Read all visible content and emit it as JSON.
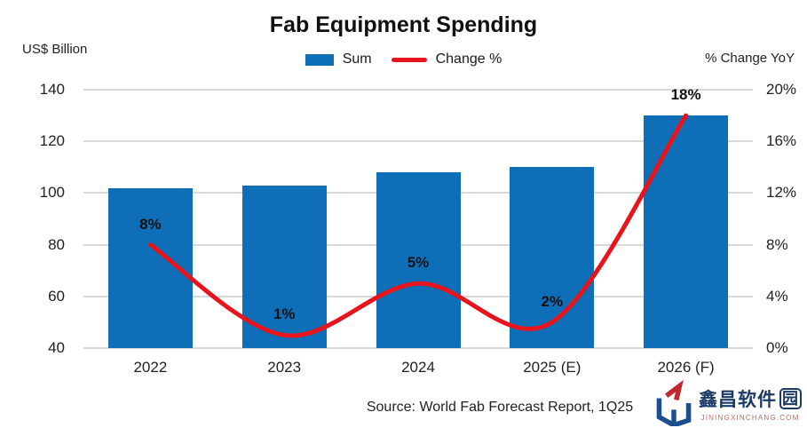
{
  "title": "Fab Equipment Spending",
  "left_axis_title": "US$ Billion",
  "right_axis_title": "% Change YoY",
  "legend": [
    {
      "label": "Sum",
      "type": "bar"
    },
    {
      "label": "Change %",
      "type": "line"
    }
  ],
  "source": "Source: World Fab Forecast Report, 1Q25",
  "watermark": {
    "name": "鑫昌软件",
    "name_boxed": "园",
    "domain": "JININGXINCHANG.COM",
    "text_color": "#1b3a66",
    "domain_color": "#bb6e65",
    "logo_red": "#c0282f",
    "logo_blue": "#1d4e8f"
  },
  "colors": {
    "bar": "#0e6fb8",
    "line": "#e8141b",
    "grid": "#d9d9d9",
    "text": "#1a1a1a"
  },
  "chart_data": {
    "type": "bar+line combo",
    "categories": [
      "2022",
      "2023",
      "2024",
      "2025 (E)",
      "2026 (F)"
    ],
    "series": [
      {
        "name": "Sum",
        "type": "bar",
        "axis": "left",
        "values": [
          102,
          103,
          108,
          110,
          130
        ]
      },
      {
        "name": "Change %",
        "type": "line",
        "axis": "right",
        "values": [
          8,
          1,
          5,
          2,
          18
        ],
        "point_labels": [
          "8%",
          "1%",
          "5%",
          "2%",
          "18%"
        ]
      }
    ],
    "left_axis": {
      "min": 40,
      "max": 140,
      "ticks": [
        "140",
        "120",
        "100",
        "80",
        "60",
        "40"
      ]
    },
    "right_axis": {
      "min": 0,
      "max": 20,
      "ticks": [
        "20%",
        "16%",
        "12%",
        "8%",
        "4%",
        "0%"
      ]
    },
    "grid": true,
    "legend_position": "top-center"
  }
}
